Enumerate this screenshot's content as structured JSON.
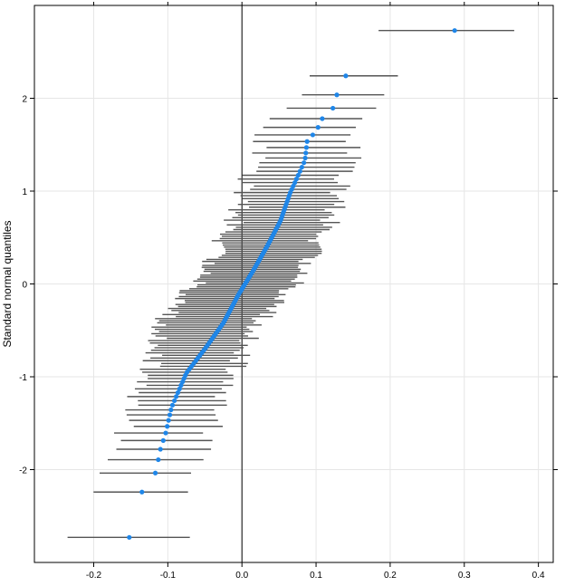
{
  "chart_data": {
    "type": "scatter",
    "subtype": "caterpillar-qq",
    "title": "",
    "xlabel": "",
    "ylabel": "Standard normal quantiles",
    "xlim": [
      -0.28,
      0.42
    ],
    "ylim": [
      -3.0,
      3.0
    ],
    "x_ticks": [
      -0.2,
      -0.1,
      0.0,
      0.1,
      0.2,
      0.3,
      0.4
    ],
    "x_tick_labels": [
      "-0.2",
      "-0.1",
      "0.0",
      "0.1",
      "0.2",
      "0.3",
      "0.4"
    ],
    "y_ticks": [
      -2,
      -1,
      0,
      1,
      2
    ],
    "y_tick_labels": [
      "-2",
      "-1",
      "0",
      "1",
      "2"
    ],
    "grid": true,
    "reference_line_x": 0,
    "n_points": 120,
    "point_color": "#1f86e8",
    "interval_color": "#555555",
    "grid_color": "#e6e6e6",
    "interval_halfwidth_typical": 0.062,
    "anchor_points": [
      {
        "q": -2.73,
        "x": -0.152,
        "lo": -0.235,
        "hi": -0.07
      },
      {
        "q": -2.36,
        "x": -0.15,
        "lo": -0.222,
        "hi": -0.08
      },
      {
        "q": -2.14,
        "x": -0.122,
        "lo": -0.185,
        "hi": -0.07
      },
      {
        "q": -1.98,
        "x": -0.114,
        "lo": -0.178,
        "hi": -0.05
      },
      {
        "q": -1.83,
        "x": -0.112,
        "lo": -0.17,
        "hi": -0.04
      },
      {
        "q": -1.61,
        "x": -0.103,
        "lo": -0.16,
        "hi": -0.04
      },
      {
        "q": -1.33,
        "x": -0.095,
        "lo": -0.15,
        "hi": -0.03
      },
      {
        "q": -0.96,
        "x": -0.075,
        "lo": -0.125,
        "hi": -0.01
      },
      {
        "q": -0.7,
        "x": -0.05,
        "lo": -0.12,
        "hi": 0.0
      },
      {
        "q": -0.42,
        "x": -0.025,
        "lo": -0.11,
        "hi": 0.02
      },
      {
        "q": -0.12,
        "x": -0.005,
        "lo": -0.075,
        "hi": 0.06
      },
      {
        "q": 0.14,
        "x": 0.015,
        "lo": -0.05,
        "hi": 0.08
      },
      {
        "q": 0.42,
        "x": 0.035,
        "lo": -0.03,
        "hi": 0.1
      },
      {
        "q": 0.68,
        "x": 0.052,
        "lo": -0.01,
        "hi": 0.12
      },
      {
        "q": 0.98,
        "x": 0.065,
        "lo": 0.0,
        "hi": 0.13
      },
      {
        "q": 1.33,
        "x": 0.085,
        "lo": 0.02,
        "hi": 0.15
      },
      {
        "q": 1.54,
        "x": 0.088,
        "lo": 0.025,
        "hi": 0.15
      },
      {
        "q": 1.6,
        "x": 0.095,
        "lo": 0.03,
        "hi": 0.16
      },
      {
        "q": 1.67,
        "x": 0.102,
        "lo": 0.04,
        "hi": 0.165
      },
      {
        "q": 1.74,
        "x": 0.105,
        "lo": 0.045,
        "hi": 0.17
      },
      {
        "q": 1.8,
        "x": 0.11,
        "lo": 0.055,
        "hi": 0.18
      },
      {
        "q": 1.91,
        "x": 0.125,
        "lo": 0.06,
        "hi": 0.18
      },
      {
        "q": 2.01,
        "x": 0.127,
        "lo": 0.07,
        "hi": 0.18
      },
      {
        "q": 2.14,
        "x": 0.132,
        "lo": 0.075,
        "hi": 0.19
      },
      {
        "q": 2.34,
        "x": 0.148,
        "lo": 0.087,
        "hi": 0.21
      },
      {
        "q": 2.73,
        "x": 0.287,
        "lo": 0.195,
        "hi": 0.378
      }
    ]
  }
}
